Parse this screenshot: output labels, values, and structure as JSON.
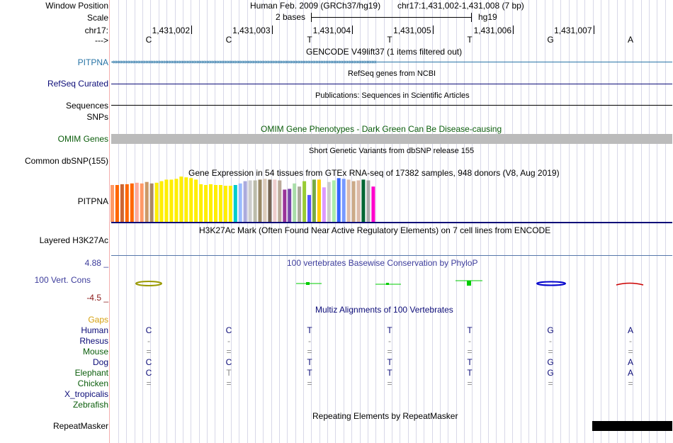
{
  "colors": {
    "pitpna": "#2874a6",
    "navy": "#0c0c78",
    "omim_green": "#0b5d0b",
    "gaps_orange": "#d6a10f",
    "cons_blue": "#3d3d9c",
    "cons_neg": "#8b1a1a",
    "grid": "#d8d8e8",
    "gutter": "#f3b0b0"
  },
  "labels": {
    "window_position": "Window Position",
    "scale": "Scale",
    "chrom": "chr17:",
    "arrow": "--->",
    "pitpna": "PITPNA",
    "refseq": "RefSeq Curated",
    "sequences": "Sequences",
    "snps": "SNPs",
    "omim": "OMIM Genes",
    "common_dbsnp": "Common dbSNP(155)",
    "gtex": "PITPNA",
    "h3k27ac": "Layered H3K27Ac",
    "cons_max": "4.88 _",
    "cons_name": "100 Vert. Cons",
    "cons_min": "-4.5 _",
    "gaps": "Gaps",
    "repeatmasker": "RepeatMasker"
  },
  "header": {
    "assembly": "Human Feb. 2009 (GRCh37/hg19)",
    "position": "chr17:1,431,002-1,431,008 (7 bp)",
    "scale_text": "2 bases",
    "scale_db": "hg19"
  },
  "ruler": {
    "coords": [
      "1,431,002",
      "1,431,003",
      "1,431,004",
      "1,431,005",
      "1,431,006",
      "1,431,007"
    ],
    "bases": [
      "C",
      "C",
      "T",
      "T",
      "T",
      "G",
      "A"
    ]
  },
  "tracks": {
    "gencode": "GENCODE V49lift37 (1 items filtered out)",
    "refseq": "RefSeq genes from NCBI",
    "publications": "Publications: Sequences in Scientific Articles",
    "omim": "OMIM Gene Phenotypes - Dark Green Can Be Disease-causing",
    "dbsnp": "Short Genetic Variants from dbSNP release 155",
    "gtex": "Gene Expression in 54 tissues from GTEx RNA-seq of 17382 samples, 948 donors (V8, Aug 2019)",
    "h3k27ac": "H3K27Ac Mark (Often Found Near Active Regulatory Elements) on 7 cell lines from ENCODE",
    "phylop": "100 vertebrates Basewise Conservation by PhyloP",
    "multiz": "Multiz Alignments of 100 Vertebrates",
    "repeatmasker": "Repeating Elements by RepeatMasker"
  },
  "alignment": {
    "species": [
      {
        "name": "Human",
        "bases": [
          "C",
          "C",
          "T",
          "T",
          "T",
          "G",
          "A"
        ]
      },
      {
        "name": "Rhesus",
        "bases": [
          "-",
          "-",
          "-",
          "-",
          "-",
          "-",
          "-"
        ]
      },
      {
        "name": "Mouse",
        "bases": [
          "=",
          "=",
          "=",
          "=",
          "=",
          "=",
          "="
        ]
      },
      {
        "name": "Dog",
        "bases": [
          "C",
          "C",
          "T",
          "T",
          "T",
          "G",
          "A"
        ]
      },
      {
        "name": "Elephant",
        "bases": [
          "C",
          "T",
          "T",
          "T",
          "T",
          "G",
          "A"
        ]
      },
      {
        "name": "Chicken",
        "bases": [
          "=",
          "=",
          "=",
          "=",
          "=",
          "=",
          "="
        ]
      },
      {
        "name": "X_tropicalis",
        "bases": []
      },
      {
        "name": "Zebrafish",
        "bases": []
      }
    ]
  },
  "gtex_bars": {
    "max": 60,
    "colors": [
      "#ff9966",
      "#ff6600",
      "#cc6633",
      "#ff6600",
      "#ff6600",
      "#ffaa99",
      "#ff9966",
      "#cc9966",
      "#aa8866",
      "#ffee00",
      "#ffee00",
      "#ffee00",
      "#ffee00",
      "#ffee00",
      "#ffee00",
      "#ffee00",
      "#ffee00",
      "#ffee00",
      "#ffee00",
      "#ffee00",
      "#ffee00",
      "#ffee00",
      "#ffee00",
      "#ffee00",
      "#ffee00",
      "#00cccc",
      "#99bbff",
      "#aaaadd",
      "#cccccc",
      "#bbbbaa",
      "#998866",
      "#ddccbb",
      "#776655",
      "#eecccc",
      "#bbaa99",
      "#993399",
      "#7744aa",
      "#aaddaa",
      "#aaaa99",
      "#99cc33",
      "#5555ff",
      "#77aa44",
      "#ffcc00",
      "#dd99ff",
      "#cccccc",
      "#aaeeaa",
      "#3366ff",
      "#7799ff",
      "#ddbbaa",
      "#ccaa88",
      "#ddbbaa",
      "#006633",
      "#aaaaaa",
      "#ff00cc"
    ],
    "values": [
      48,
      48,
      49,
      49,
      50,
      51,
      50,
      52,
      50,
      51,
      53,
      55,
      55,
      56,
      59,
      58,
      57,
      55,
      49,
      48,
      49,
      48,
      48,
      47,
      47,
      48,
      50,
      53,
      54,
      54,
      55,
      56,
      55,
      55,
      54,
      42,
      43,
      50,
      46,
      53,
      35,
      55,
      55,
      45,
      52,
      54,
      57,
      56,
      55,
      53,
      54,
      55,
      54,
      46
    ]
  }
}
